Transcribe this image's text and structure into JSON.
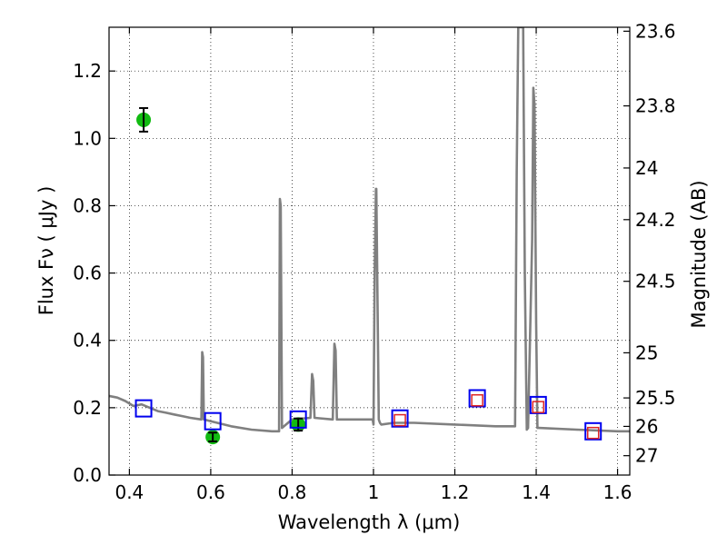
{
  "chart_data": {
    "type": "line",
    "xlabel": "Wavelength  λ (μm)",
    "ylabel": "Flux  Fν  ( μJy )",
    "ylabel_right": "Magnitude (AB)",
    "xlim": [
      0.35,
      1.63
    ],
    "ylim": [
      0.0,
      1.33
    ],
    "grid": true,
    "x_ticks": [
      "0.4",
      "0.6",
      "0.8",
      "1",
      "1.2",
      "1.4",
      "1.6"
    ],
    "y_ticks": [
      "0.0",
      "0.2",
      "0.4",
      "0.6",
      "0.8",
      "1.0",
      "1.2"
    ],
    "right_ticks": [
      "23.6",
      "23.8",
      "24",
      "24.2",
      "24.5",
      "25",
      "25.5",
      "26",
      "27"
    ],
    "colors": {
      "spectrum": "#808080",
      "detections": "#11bb11",
      "model_photometry": "#0000ee",
      "observed_photometry": "#dd2222"
    },
    "series": [
      {
        "kind": "model spectrum",
        "x": [
          0.35,
          0.37,
          0.39,
          0.41,
          0.43,
          0.45,
          0.47,
          0.49,
          0.51,
          0.53,
          0.55,
          0.577,
          0.579,
          0.581,
          0.583,
          0.6,
          0.65,
          0.7,
          0.75,
          0.768,
          0.77,
          0.772,
          0.775,
          0.8,
          0.845,
          0.849,
          0.852,
          0.855,
          0.9,
          0.904,
          0.907,
          0.91,
          0.95,
          0.998,
          1.0,
          1.003,
          1.006,
          1.007,
          1.01,
          1.013,
          1.016,
          1.019,
          1.05,
          1.1,
          1.2,
          1.3,
          1.348,
          1.352,
          1.356,
          1.36,
          1.364,
          1.368,
          1.372,
          1.377,
          1.38,
          1.39,
          1.393,
          1.396,
          1.4,
          1.403,
          1.406,
          1.5,
          1.6,
          1.63
        ],
        "y": [
          0.235,
          0.23,
          0.22,
          0.205,
          0.21,
          0.2,
          0.19,
          0.185,
          0.18,
          0.175,
          0.17,
          0.165,
          0.365,
          0.35,
          0.165,
          0.16,
          0.145,
          0.135,
          0.13,
          0.13,
          0.82,
          0.8,
          0.14,
          0.165,
          0.17,
          0.3,
          0.28,
          0.17,
          0.165,
          0.39,
          0.37,
          0.165,
          0.165,
          0.165,
          0.15,
          0.6,
          0.85,
          0.85,
          0.5,
          0.165,
          0.155,
          0.15,
          0.155,
          0.155,
          0.15,
          0.145,
          0.145,
          0.9,
          1.33,
          1.33,
          1.33,
          1.33,
          0.6,
          0.135,
          0.14,
          0.7,
          1.15,
          1.1,
          0.45,
          0.14,
          0.14,
          0.135,
          0.13,
          0.13
        ]
      },
      {
        "kind": "detections with error bars",
        "points": [
          {
            "x": 0.435,
            "y": 1.055,
            "err": 0.035
          },
          {
            "x": 0.605,
            "y": 0.113,
            "err": 0.013
          },
          {
            "x": 0.815,
            "y": 0.15,
            "err": 0.018
          }
        ]
      },
      {
        "kind": "model photometry",
        "points": [
          {
            "x": 0.435,
            "y": 0.198
          },
          {
            "x": 0.605,
            "y": 0.16
          },
          {
            "x": 0.815,
            "y": 0.165
          },
          {
            "x": 1.065,
            "y": 0.168
          },
          {
            "x": 1.255,
            "y": 0.228
          },
          {
            "x": 1.405,
            "y": 0.208
          },
          {
            "x": 1.54,
            "y": 0.13
          }
        ]
      },
      {
        "kind": "observed photometry",
        "points": [
          {
            "x": 1.065,
            "y": 0.163
          },
          {
            "x": 1.255,
            "y": 0.222
          },
          {
            "x": 1.405,
            "y": 0.202
          },
          {
            "x": 1.54,
            "y": 0.125
          }
        ]
      }
    ]
  }
}
